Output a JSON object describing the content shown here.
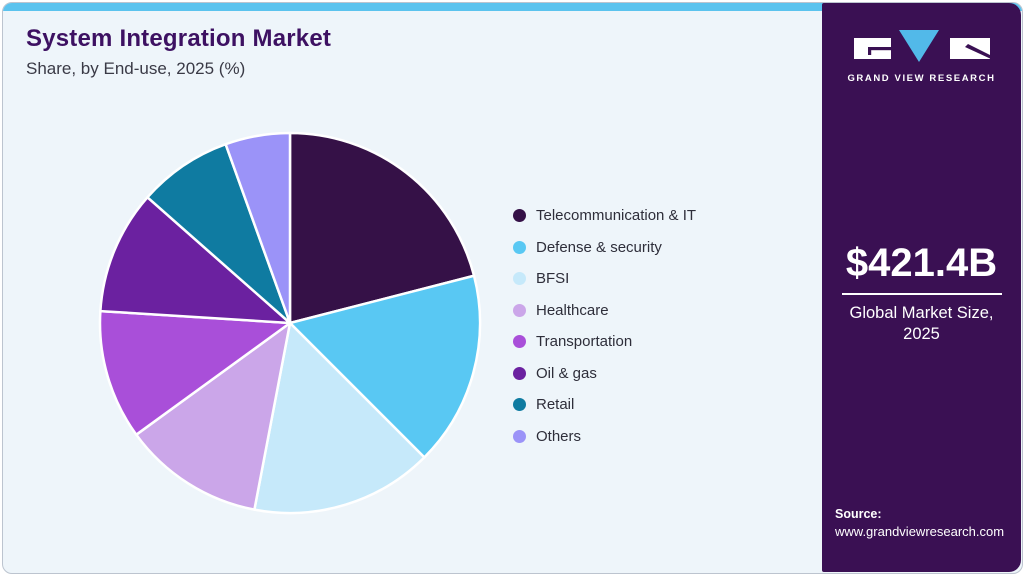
{
  "header": {
    "title": "System Integration Market",
    "subtitle": "Share, by End-use, 2025 (%)"
  },
  "chart_data": {
    "type": "pie",
    "title": "System Integration Market Share, by End-use, 2025 (%)",
    "unit": "%",
    "start_angle_deg": 0,
    "direction": "clockwise",
    "legend_position": "right",
    "values_labeled_on_chart": false,
    "slices": [
      {
        "label": "Telecommunication & IT",
        "value": 21,
        "color": "#351147"
      },
      {
        "label": "Defense & security",
        "value": 16.5,
        "color": "#59c8f3"
      },
      {
        "label": "BFSI",
        "value": 15.5,
        "color": "#c6e9fa"
      },
      {
        "label": "Healthcare",
        "value": 12,
        "color": "#cba6e9"
      },
      {
        "label": "Transportation",
        "value": 11,
        "color": "#a94fd9"
      },
      {
        "label": "Oil & gas",
        "value": 10.5,
        "color": "#6b21a0"
      },
      {
        "label": "Retail",
        "value": 8,
        "color": "#0f7ba1"
      },
      {
        "label": "Others",
        "value": 5.5,
        "color": "#9b93f8"
      }
    ]
  },
  "sidebar": {
    "logo_text": "GRAND VIEW RESEARCH",
    "market_size_value": "$421.4B",
    "market_size_caption_line1": "Global Market Size,",
    "market_size_caption_line2": "2025",
    "source_label": "Source:",
    "source_url": "www.grandviewresearch.com"
  },
  "colors": {
    "topbar": "#5bc3ee",
    "card_bg": "#eef5fa",
    "sidebar_bg": "#3a1053",
    "title_text": "#3d1162",
    "legend_text": "#2e2e3a",
    "logo_v_blue": "#52b9e9"
  }
}
